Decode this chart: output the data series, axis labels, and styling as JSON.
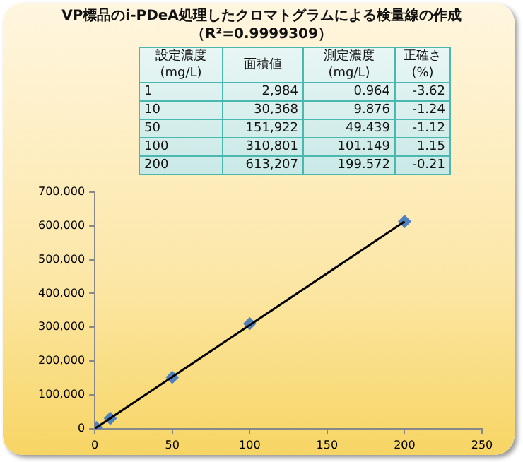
{
  "chart_data": {
    "type": "scatter",
    "title": "VP標品のi-PDeA処理したクロマトグラムによる検量線の作成（R²=0.9999309）",
    "x": [
      1,
      10,
      50,
      100,
      200
    ],
    "series": [
      {
        "color": "#4f81bd",
        "marker": "diamond",
        "values": [
          2984,
          30368,
          151922,
          310801,
          613207
        ]
      },
      {
        "type": "line",
        "color": "#000000",
        "marker": "none",
        "line_style": "solid",
        "x": [
          0,
          200
        ],
        "values": [
          0,
          613000
        ]
      }
    ],
    "annotations": [
      "設定濃度\n(mg/L)",
      "面積値",
      "測定濃度\n(mg/L)",
      "正確さ\n(%)",
      "1",
      "2,984",
      "0.964",
      "-3.62",
      "10",
      "30,368",
      "9.876",
      "-1.24",
      "50",
      "151,922",
      "49.439",
      "-1.12",
      "100",
      "310,801",
      "101.149",
      "1.15",
      "200",
      "613,207",
      "199.572",
      "-0.21"
    ],
    "xlim": [
      0,
      250
    ],
    "xticks": [
      0,
      50,
      100,
      150,
      200,
      250
    ],
    "ylim": [
      0,
      700000
    ],
    "yticks": [
      {
        "value": 0,
        "label": "0"
      },
      {
        "value": 100000,
        "label": "100,000"
      },
      {
        "value": 200000,
        "label": "200,000"
      },
      {
        "value": 300000,
        "label": "300,000"
      },
      {
        "value": 400000,
        "label": "400,000"
      },
      {
        "value": 500000,
        "label": "500,000"
      },
      {
        "value": 600000,
        "label": "600,000"
      },
      {
        "value": 700000,
        "label": "700,000"
      }
    ],
    "grid": false,
    "legend": false
  }
}
